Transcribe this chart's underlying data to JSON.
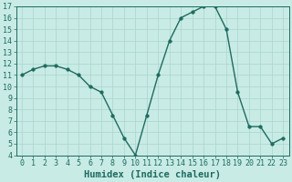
{
  "x": [
    0,
    1,
    2,
    3,
    4,
    5,
    6,
    7,
    8,
    9,
    10,
    11,
    12,
    13,
    14,
    15,
    16,
    17,
    18,
    19,
    20,
    21,
    22,
    23
  ],
  "y": [
    11.0,
    11.5,
    11.8,
    11.8,
    11.5,
    11.0,
    10.0,
    9.5,
    7.5,
    5.5,
    4.0,
    7.5,
    11.0,
    14.0,
    16.0,
    16.5,
    17.0,
    17.0,
    15.0,
    9.5,
    6.5,
    6.5,
    5.0,
    5.5
  ],
  "xlabel": "Humidex (Indice chaleur)",
  "xlim": [
    -0.5,
    23.5
  ],
  "ylim": [
    4,
    17
  ],
  "yticks": [
    4,
    5,
    6,
    7,
    8,
    9,
    10,
    11,
    12,
    13,
    14,
    15,
    16,
    17
  ],
  "xticks": [
    0,
    1,
    2,
    3,
    4,
    5,
    6,
    7,
    8,
    9,
    10,
    11,
    12,
    13,
    14,
    15,
    16,
    17,
    18,
    19,
    20,
    21,
    22,
    23
  ],
  "line_color": "#1e6b5e",
  "bg_color": "#c8ebe6",
  "grid_color": "#aad4cc",
  "xlabel_fontsize": 7.5,
  "tick_fontsize": 6,
  "linewidth": 1.0,
  "markersize": 2.5
}
